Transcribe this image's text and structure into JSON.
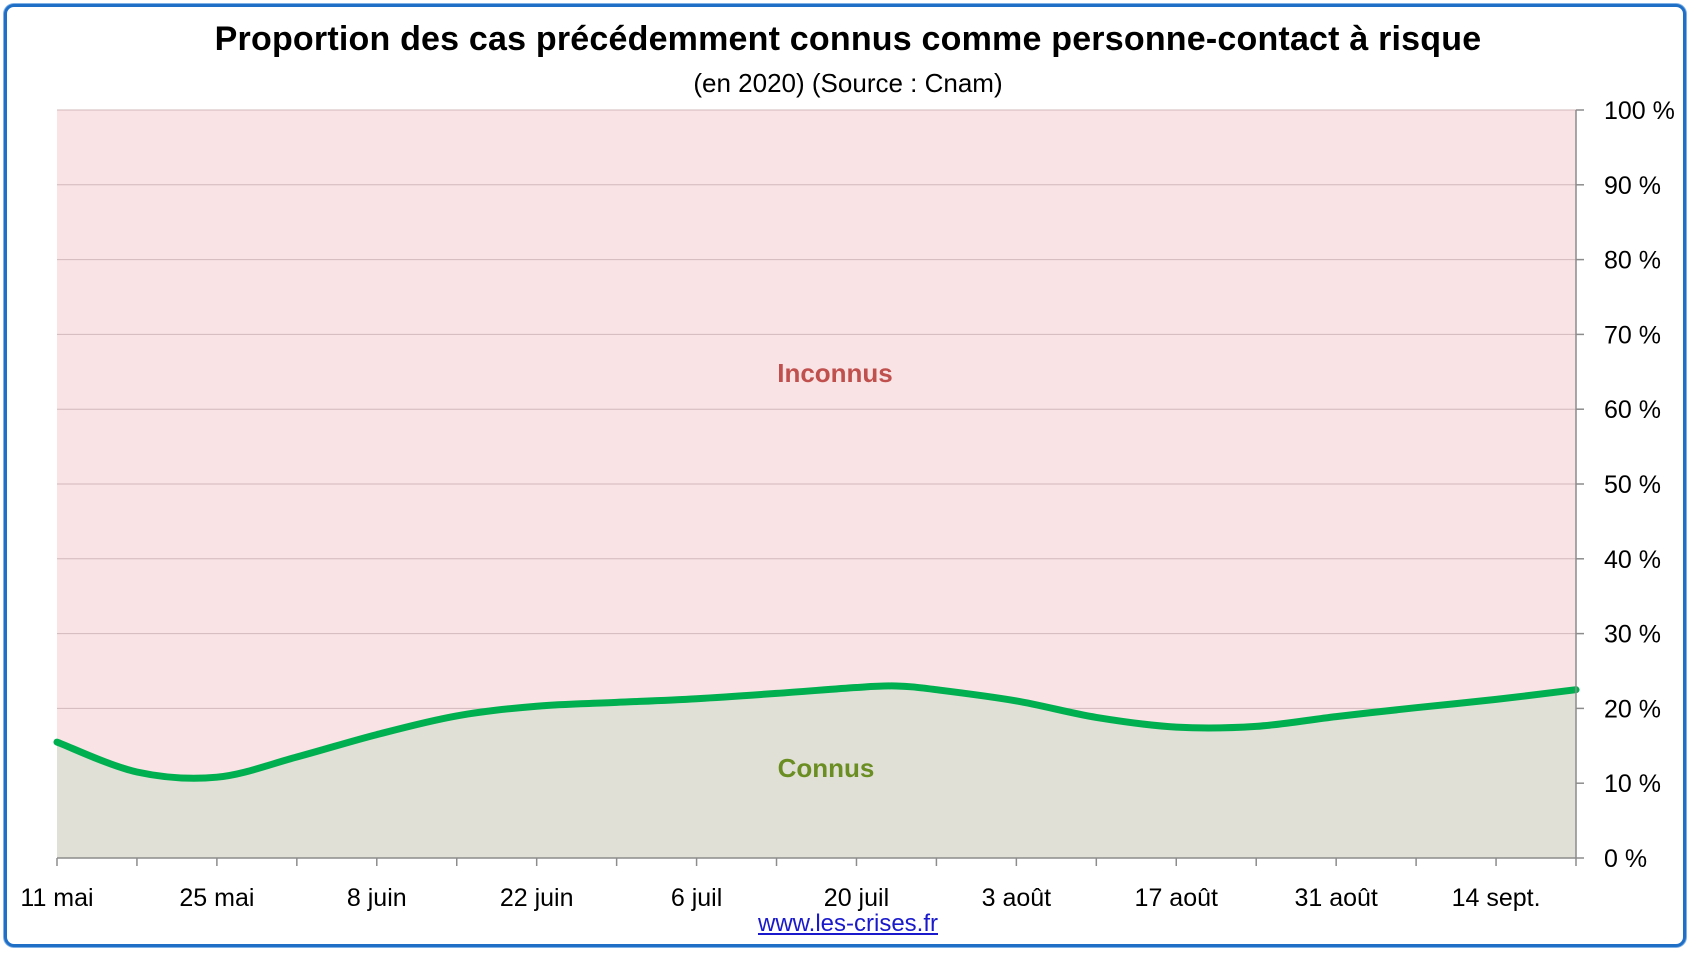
{
  "chart_data": {
    "type": "area",
    "title": "Proportion des cas précédemment connus comme personne-contact à risque",
    "subtitle": "(en 2020) (Source : Cnam)",
    "categories": [
      "11 mai",
      "25 mai",
      "8 juin",
      "22 juin",
      "6 juil",
      "20 juil",
      "3 août",
      "17 août",
      "31 août",
      "14 sept."
    ],
    "series": [
      {
        "name": "Connus",
        "color": "#00b050",
        "x": [
          0,
          1,
          2,
          3,
          4,
          5,
          6,
          7,
          8,
          9,
          10,
          10.5,
          11,
          12,
          13,
          14,
          15,
          16,
          17,
          18,
          19
        ],
        "values": [
          15.5,
          11.5,
          10.8,
          13.5,
          16.5,
          19.0,
          20.3,
          20.8,
          21.3,
          22.0,
          22.8,
          23.0,
          22.5,
          21.0,
          18.8,
          17.5,
          17.6,
          18.9,
          20.1,
          21.2,
          22.5
        ]
      },
      {
        "name": "Inconnus",
        "color": "#f9e3e4"
      }
    ],
    "area_colors": {
      "connus": "#e0e0d7",
      "inconnus": "#f9e3e4"
    },
    "label_colors": {
      "connus": "#6b8e23",
      "inconnus": "#c0504d"
    },
    "ylim": [
      0,
      100
    ],
    "y_ticks": [
      "0 %",
      "10 %",
      "20 %",
      "30 %",
      "40 %",
      "50 %",
      "60 %",
      "70 %",
      "80 %",
      "90 %",
      "100 %"
    ],
    "y_axis_position": "right",
    "grid": true
  },
  "footer": {
    "link": "www.les-crises.fr"
  }
}
